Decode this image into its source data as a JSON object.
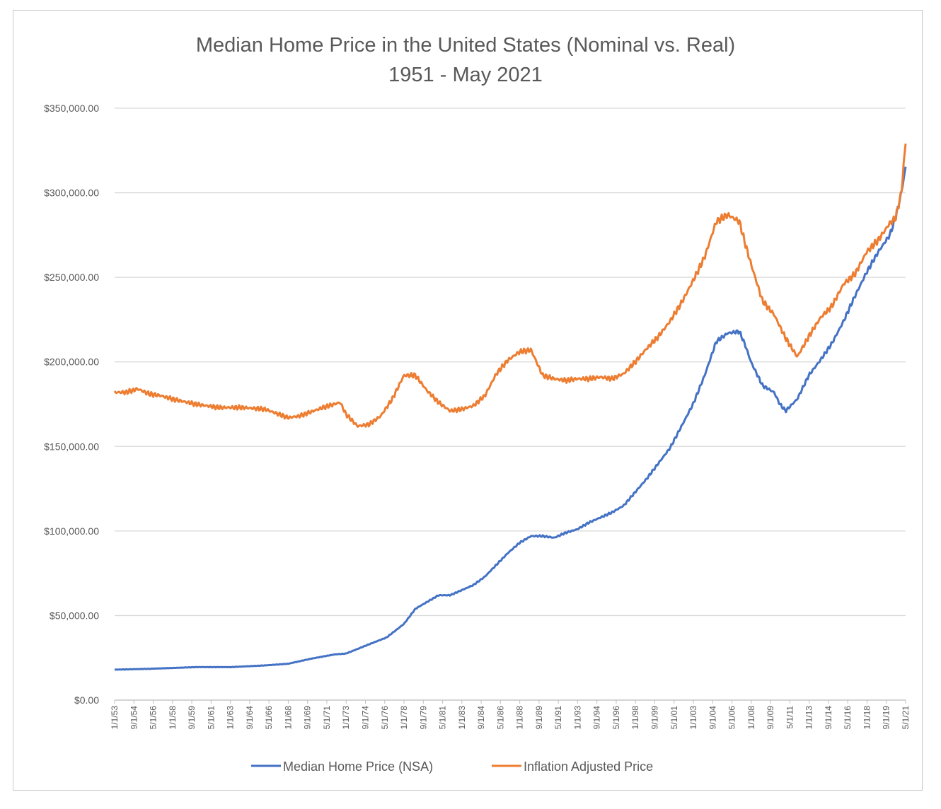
{
  "chart_data": {
    "type": "line",
    "title": "Median Home Price in the United States (Nominal vs. Real)",
    "subtitle": "1951 - May 2021",
    "xlabel": "",
    "ylabel": "",
    "ylim": [
      0,
      350000
    ],
    "yticks": [
      "$0.00",
      "$50,000.00",
      "$100,000.00",
      "$150,000.00",
      "$200,000.00",
      "$250,000.00",
      "$300,000.00",
      "$350,000.00"
    ],
    "ytick_values": [
      0,
      50000,
      100000,
      150000,
      200000,
      250000,
      300000,
      350000
    ],
    "xlim": [
      1953.0,
      2021.37
    ],
    "grid": true,
    "legend_position": "bottom",
    "xticks": [
      "1/1/53",
      "9/1/54",
      "5/1/56",
      "1/1/58",
      "9/1/59",
      "5/1/61",
      "1/1/63",
      "9/1/64",
      "5/1/66",
      "1/1/68",
      "9/1/69",
      "5/1/71",
      "1/1/73",
      "9/1/74",
      "5/1/76",
      "1/1/78",
      "9/1/79",
      "5/1/81",
      "1/1/83",
      "9/1/84",
      "5/1/86",
      "1/1/88",
      "9/1/89",
      "5/1/91",
      "1/1/93",
      "9/1/94",
      "5/1/96",
      "1/1/98",
      "9/1/99",
      "5/1/01",
      "1/1/03",
      "9/1/04",
      "5/1/06",
      "1/1/08",
      "9/1/09",
      "5/1/11",
      "1/1/13",
      "9/1/14",
      "5/1/16",
      "1/1/18",
      "9/1/19",
      "5/1/21"
    ],
    "series": [
      {
        "name": "Median Home Price (NSA)",
        "color": "#4472c4",
        "x": [
          1953,
          1956,
          1960,
          1963,
          1966,
          1968,
          1970,
          1972,
          1973,
          1975,
          1976.5,
          1978,
          1979,
          1980,
          1981,
          1982,
          1983,
          1984,
          1985,
          1986,
          1987,
          1988,
          1989,
          1990,
          1991,
          1992,
          1993,
          1994,
          1995,
          1996,
          1997,
          1998,
          1999,
          2000,
          2001,
          2002,
          2003,
          2004,
          2005,
          2006,
          2007,
          2007.5,
          2008,
          2009,
          2010,
          2010.5,
          2011,
          2012,
          2013,
          2014,
          2015,
          2016,
          2017,
          2018,
          2019,
          2020,
          2020.5,
          2021,
          2021.37
        ],
        "values": [
          18000,
          18500,
          19500,
          19500,
          20500,
          21500,
          24500,
          27000,
          27500,
          33000,
          37000,
          45000,
          54000,
          58000,
          62000,
          62000,
          65000,
          68000,
          73000,
          80000,
          87000,
          93000,
          97000,
          97000,
          96000,
          99000,
          101000,
          105000,
          108000,
          111000,
          115000,
          123000,
          131000,
          140000,
          149000,
          162000,
          175000,
          192000,
          212000,
          217000,
          218000,
          210000,
          200000,
          186000,
          182000,
          175000,
          171000,
          178000,
          192000,
          201000,
          211000,
          224000,
          239000,
          253000,
          265000,
          275000,
          285000,
          300000,
          315000
        ]
      },
      {
        "name": "Inflation Adjusted Price",
        "color": "#ed7d31",
        "x": [
          1953,
          1954,
          1955,
          1956,
          1957,
          1958,
          1960,
          1962,
          1964,
          1966,
          1968,
          1969,
          1971,
          1972.5,
          1973,
          1974,
          1975,
          1976,
          1977,
          1978,
          1979,
          1980,
          1981,
          1982,
          1983,
          1984,
          1985,
          1986,
          1987,
          1988,
          1989,
          1990,
          1991,
          1992,
          1993,
          1994,
          1995,
          1996,
          1997,
          1998,
          1999,
          2000,
          2001,
          2002,
          2003,
          2004,
          2005,
          2006,
          2007,
          2007.5,
          2008,
          2009,
          2010,
          2011,
          2012,
          2013,
          2014,
          2015,
          2016,
          2017,
          2018,
          2019,
          2020,
          2020.5,
          2021,
          2021.37
        ],
        "values": [
          182000,
          182000,
          184000,
          181000,
          180000,
          178000,
          175000,
          173000,
          173000,
          172000,
          167000,
          168000,
          173000,
          176000,
          169000,
          162000,
          163000,
          168000,
          178000,
          192000,
          192000,
          183000,
          176000,
          171000,
          172000,
          174000,
          180000,
          193000,
          201000,
          206000,
          207000,
          192000,
          190000,
          189000,
          190000,
          190000,
          191000,
          190000,
          193000,
          200000,
          208000,
          215000,
          224000,
          235000,
          248000,
          262000,
          283000,
          287000,
          283000,
          270000,
          258000,
          236000,
          228000,
          214000,
          203000,
          215000,
          226000,
          233000,
          246000,
          252000,
          265000,
          272000,
          282000,
          285000,
          300000,
          330000
        ]
      }
    ]
  }
}
